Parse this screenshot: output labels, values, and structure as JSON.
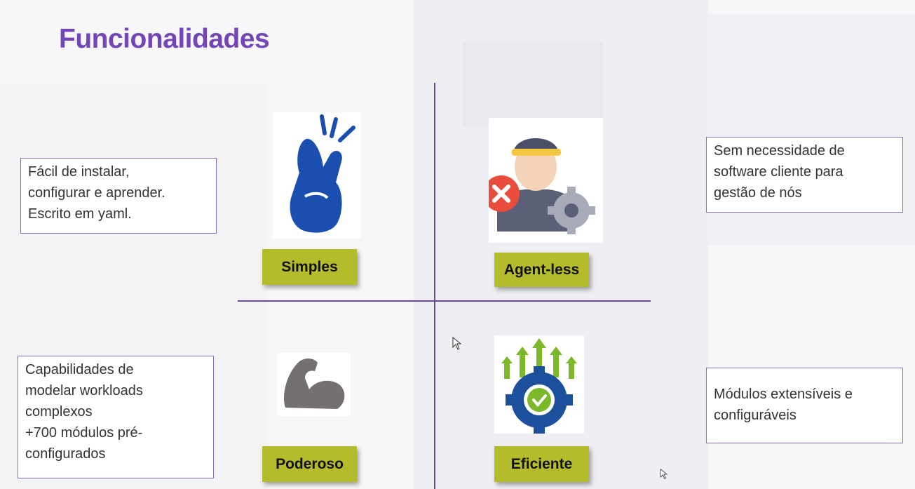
{
  "title": "Funcionalidades",
  "quadrants": {
    "simples": {
      "label": "Simples",
      "icon": "snap-fingers-icon",
      "description": [
        "Fácil de instalar,",
        "configurar e aprender.",
        "Escrito em yaml."
      ]
    },
    "agentless": {
      "label": "Agent-less",
      "icon": "agent-no-gear-icon",
      "description": [
        "Sem necessidade de",
        "software cliente para",
        "gestão de nós"
      ]
    },
    "poderoso": {
      "label": "Poderoso",
      "icon": "flexed-arm-icon",
      "description": [
        "Capabilidades de",
        "modelar workloads",
        "complexos",
        "+700 módulos pré-",
        "configurados"
      ]
    },
    "eficiente": {
      "label": "Eficiente",
      "icon": "gear-arrows-check-icon",
      "description": [
        "Módulos extensíveis e",
        "configuráveis"
      ]
    }
  },
  "colors": {
    "title": "#7346b8",
    "label_bg": "#b4bc2c",
    "divider": "#6a4a9a",
    "box_border": "#8a6db3",
    "hand_blue": "#1a4fb0",
    "gear_blue": "#1c4f9c",
    "arrow_green": "#7bb82a",
    "error_red": "#e84c3d"
  }
}
